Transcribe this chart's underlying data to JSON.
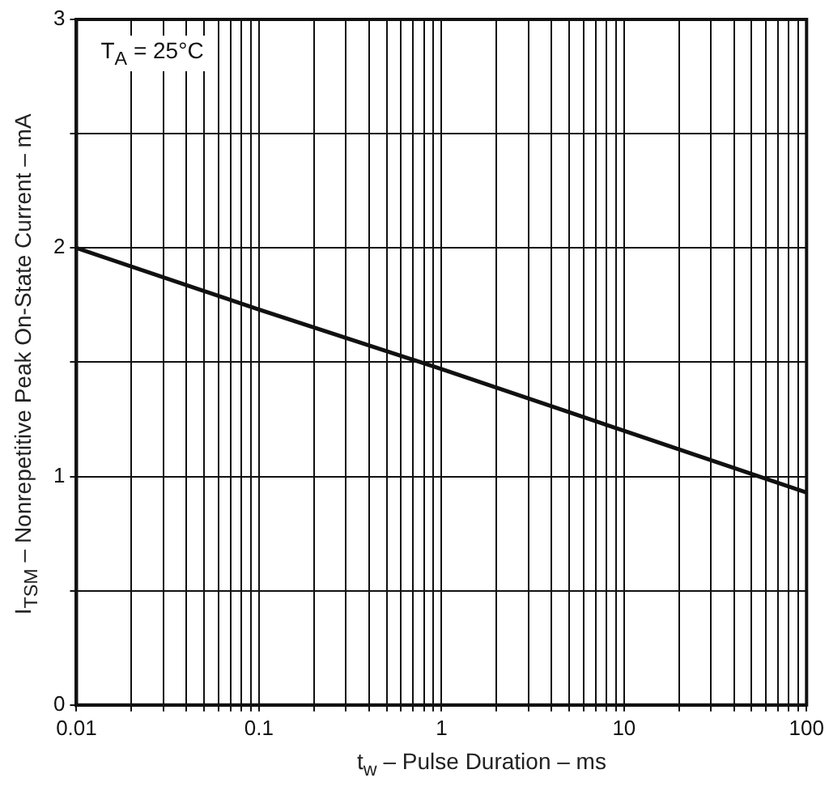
{
  "chart_data": {
    "type": "line",
    "xlabel": "t$_{w}$ – Pulse Duration – ms",
    "ylabel": "I$_{TSM}$ – Nonrepetitive Peak On-State Current – mA",
    "annotations": [
      "T$_{A}$ = 25°C"
    ],
    "x": [
      0.01,
      0.1,
      1,
      10,
      100
    ],
    "series": [
      {
        "color": "#111111",
        "values": [
          2,
          1.73,
          1.47,
          1.2,
          0.93
        ]
      }
    ],
    "log": "x",
    "xlim": [
      0.01,
      100
    ],
    "ylim": [
      0,
      3
    ],
    "xticks": [
      0.01,
      {
        "value": 0.02,
        "label": null
      },
      {
        "value": 0.03,
        "label": null
      },
      {
        "value": 0.04,
        "label": null
      },
      {
        "value": 0.05,
        "label": null
      },
      {
        "value": 0.06,
        "label": null
      },
      {
        "value": 0.07,
        "label": null
      },
      {
        "value": 0.08,
        "label": null
      },
      {
        "value": 0.09,
        "label": null
      },
      0.1,
      {
        "value": 0.2,
        "label": null
      },
      {
        "value": 0.3,
        "label": null
      },
      {
        "value": 0.4,
        "label": null
      },
      {
        "value": 0.5,
        "label": null
      },
      {
        "value": 0.6,
        "label": null
      },
      {
        "value": 0.7,
        "label": null
      },
      {
        "value": 0.8,
        "label": null
      },
      {
        "value": 0.9,
        "label": null
      },
      1,
      {
        "value": 2,
        "label": null
      },
      {
        "value": 3,
        "label": null
      },
      {
        "value": 4,
        "label": null
      },
      {
        "value": 5,
        "label": null
      },
      {
        "value": 6,
        "label": null
      },
      {
        "value": 7,
        "label": null
      },
      {
        "value": 8,
        "label": null
      },
      {
        "value": 9,
        "label": null
      },
      10,
      {
        "value": 20,
        "label": null
      },
      {
        "value": 30,
        "label": null
      },
      {
        "value": 40,
        "label": null
      },
      {
        "value": 50,
        "label": null
      },
      {
        "value": 60,
        "label": null
      },
      {
        "value": 70,
        "label": null
      },
      {
        "value": 80,
        "label": null
      },
      {
        "value": 90,
        "label": null
      },
      100
    ],
    "yticks": [
      0,
      {
        "value": 0.5,
        "label": null
      },
      1,
      {
        "value": 1.5,
        "label": null
      },
      2,
      {
        "value": 2.5,
        "label": null
      },
      3
    ],
    "grid": true,
    "legend": false,
    "marker": "none",
    "line_style": "solid"
  }
}
